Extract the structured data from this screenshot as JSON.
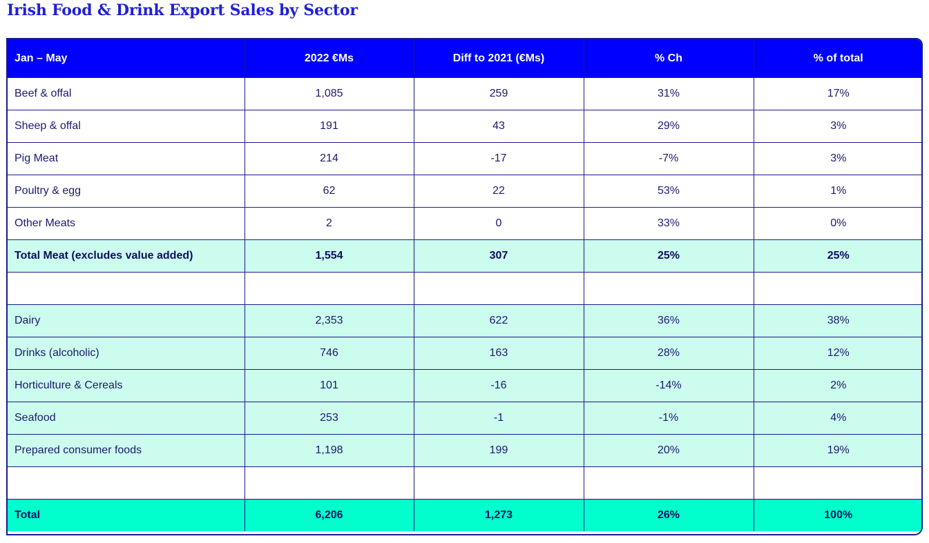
{
  "title": "Irish Food & Drink Export Sales by Sector",
  "colors": {
    "header_bg": "#0000ff",
    "mint": "#ccfcee",
    "total_bg": "#00ffcc",
    "title": "#1f1fd8"
  },
  "table": {
    "headers": [
      "Jan – May",
      "2022 €Ms",
      "Diff to 2021 (€Ms)",
      "% Ch",
      "% of total"
    ],
    "rows": [
      {
        "cells": [
          "Beef & offal",
          "1,085",
          "259",
          "31%",
          "17%"
        ],
        "style": "white"
      },
      {
        "cells": [
          "Sheep & offal",
          "191",
          "43",
          "29%",
          "3%"
        ],
        "style": "white"
      },
      {
        "cells": [
          "Pig Meat",
          "214",
          "-17",
          "-7%",
          "3%"
        ],
        "style": "white"
      },
      {
        "cells": [
          "Poultry & egg",
          "62",
          "22",
          "53%",
          "1%"
        ],
        "style": "white"
      },
      {
        "cells": [
          "Other Meats",
          "2",
          "0",
          "33%",
          "0%"
        ],
        "style": "white"
      },
      {
        "cells": [
          "Total Meat (excludes value added)",
          "1,554",
          "307",
          "25%",
          "25%"
        ],
        "style": "mint bold"
      },
      {
        "cells": [
          "",
          "",
          "",
          "",
          ""
        ],
        "style": "white"
      },
      {
        "cells": [
          "Dairy",
          "2,353",
          "622",
          "36%",
          "38%"
        ],
        "style": "mint"
      },
      {
        "cells": [
          "Drinks (alcoholic)",
          "746",
          "163",
          "28%",
          "12%"
        ],
        "style": "mint"
      },
      {
        "cells": [
          "Horticulture & Cereals",
          "101",
          "-16",
          "-14%",
          "2%"
        ],
        "style": "mint"
      },
      {
        "cells": [
          "Seafood",
          "253",
          "-1",
          "-1%",
          "4%"
        ],
        "style": "mint"
      },
      {
        "cells": [
          "Prepared consumer foods",
          "1,198",
          "199",
          "20%",
          "19%"
        ],
        "style": "mint"
      },
      {
        "cells": [
          "",
          "",
          "",
          "",
          ""
        ],
        "style": "white"
      },
      {
        "cells": [
          "Total",
          "6,206",
          "1,273",
          "26%",
          "100%"
        ],
        "style": "total"
      }
    ]
  }
}
